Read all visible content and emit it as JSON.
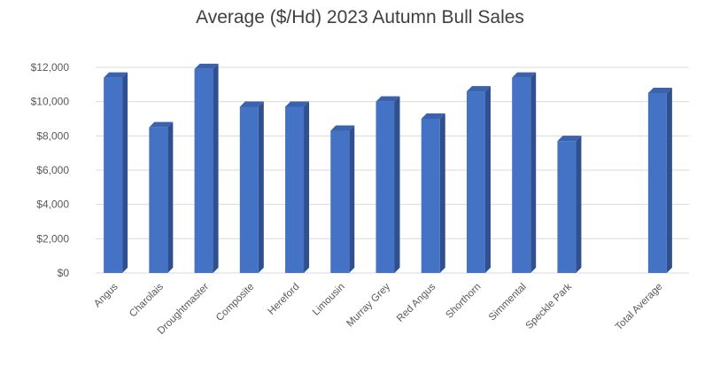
{
  "chart_data": {
    "type": "bar",
    "title": "Average ($/Hd) 2023 Autumn Bull Sales",
    "xlabel": "",
    "ylabel": "",
    "categories": [
      "Angus",
      "Charolais",
      "Droughtmaster",
      "Composite",
      "Hereford",
      "Limousin",
      "Murray Grey",
      "Red Angus",
      "Shorthorn",
      "Simmental",
      "Speckle Park",
      "",
      "Total Average"
    ],
    "values": [
      11400,
      8500,
      11900,
      9700,
      9700,
      8300,
      10000,
      9000,
      10600,
      11400,
      7700,
      null,
      10500
    ],
    "ylim": [
      0,
      12000
    ],
    "yticks": [
      "$0",
      "$2,000",
      "$4,000",
      "$6,000",
      "$8,000",
      "$10,000",
      "$12,000"
    ],
    "grid": true,
    "legend": "none",
    "bar_color": "#4472c4",
    "bar_side_color": "#2f4f8f",
    "bar_top_color": "#3a62ad"
  }
}
